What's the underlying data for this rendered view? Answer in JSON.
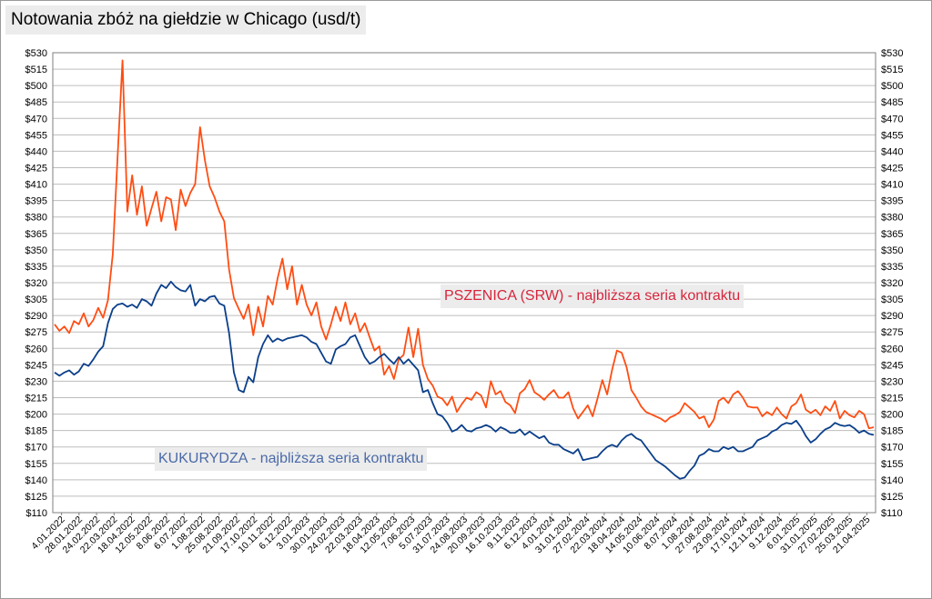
{
  "title": "Notowania zbóż na giełdzie w Chicago (usd/t)",
  "colors": {
    "wheat": "#ff4d12",
    "corn": "#0b3f8a",
    "grid": "#bdbdbd",
    "frame": "#7f7f7f"
  },
  "chart_data": {
    "type": "line",
    "title": "Notowania zbóż na giełdzie w Chicago (usd/t)",
    "xlabel": "",
    "ylabel": "",
    "ylim": [
      110,
      530
    ],
    "ytick_step": 15,
    "yticks_both_sides": true,
    "grid": "horizontal",
    "x_start": "4.01.2022",
    "x_end": "16.05.2025",
    "x_tick_labels": [
      "4.01.2022",
      "28.01.2022",
      "24.02.2022",
      "22.03.2022",
      "18.04.2022",
      "12.05.2022",
      "8.06.2022",
      "6.07.2022",
      "1.08.2022",
      "25.08.2022",
      "21.09.2022",
      "17.10.2022",
      "10.11.2022",
      "6.12.2022",
      "3.01.2023",
      "30.01.2023",
      "24.02.2023",
      "22.03.2023",
      "18.04.2023",
      "12.05.2023",
      "7.06.2023",
      "5.07.2023",
      "31.07.2023",
      "24.08.2023",
      "20.09.2023",
      "16.10.2023",
      "9.11.2023",
      "6.12.2023",
      "4.01.2024",
      "31.01.2024",
      "27.02.2024",
      "22.03.2024",
      "18.04.2024",
      "14.05.2024",
      "10.06.2024",
      "8.07.2024",
      "1.08.2024",
      "27.08.2024",
      "23.09.2024",
      "17.10.2024",
      "12.11.2024",
      "9.12.2024",
      "6.01.2025",
      "31.01.2025",
      "27.02.2025",
      "25.03.2025",
      "21.04.2025"
    ],
    "series": [
      {
        "name": "PSZENICA (SRW) - najbliższa seria kontraktu",
        "label": "PSZENICA (SRW) - najbliższa seria kontraktu",
        "color": "#ff4d12",
        "values": [
          282,
          276,
          280,
          274,
          285,
          282,
          292,
          280,
          286,
          297,
          288,
          304,
          346,
          435,
          523,
          385,
          418,
          382,
          408,
          372,
          388,
          403,
          376,
          398,
          396,
          368,
          405,
          390,
          402,
          410,
          462,
          432,
          408,
          398,
          385,
          376,
          332,
          306,
          296,
          287,
          300,
          272,
          298,
          280,
          308,
          300,
          324,
          342,
          314,
          335,
          300,
          318,
          300,
          290,
          302,
          280,
          268,
          282,
          298,
          285,
          302,
          282,
          292,
          275,
          283,
          270,
          258,
          262,
          236,
          244,
          232,
          250,
          254,
          279,
          252,
          278,
          245,
          232,
          226,
          216,
          214,
          208,
          216,
          202,
          209,
          215,
          213,
          220,
          217,
          206,
          230,
          218,
          221,
          211,
          208,
          201,
          219,
          223,
          231,
          220,
          217,
          213,
          218,
          222,
          215,
          215,
          220,
          205,
          196,
          202,
          208,
          198,
          214,
          231,
          218,
          240,
          258,
          256,
          243,
          222,
          215,
          207,
          202,
          200,
          198,
          196,
          193,
          197,
          199,
          202,
          210,
          206,
          202,
          196,
          198,
          188,
          195,
          212,
          215,
          210,
          218,
          221,
          215,
          207,
          206,
          206,
          198,
          202,
          199,
          206,
          200,
          196,
          207,
          210,
          218,
          204,
          201,
          204,
          199,
          207,
          203,
          212,
          196,
          203,
          199,
          197,
          203,
          200,
          187,
          188
        ]
      },
      {
        "name": "KUKURYDZA - najbliższa seria kontraktu",
        "label": "KUKURYDZA - najbliższa seria kontraktu",
        "color": "#0b3f8a",
        "values": [
          238,
          235,
          238,
          240,
          236,
          239,
          246,
          244,
          250,
          257,
          262,
          283,
          296,
          300,
          301,
          298,
          300,
          297,
          305,
          303,
          299,
          310,
          318,
          315,
          321,
          316,
          313,
          312,
          318,
          299,
          305,
          303,
          307,
          308,
          301,
          299,
          274,
          238,
          222,
          220,
          234,
          229,
          252,
          264,
          272,
          266,
          269,
          267,
          269,
          270,
          271,
          272,
          270,
          266,
          264,
          256,
          248,
          246,
          259,
          262,
          264,
          270,
          272,
          262,
          252,
          246,
          248,
          252,
          255,
          250,
          246,
          252,
          246,
          250,
          245,
          240,
          220,
          222,
          210,
          200,
          198,
          192,
          184,
          186,
          190,
          185,
          184,
          187,
          188,
          190,
          188,
          184,
          188,
          186,
          183,
          183,
          186,
          181,
          184,
          181,
          178,
          180,
          174,
          172,
          172,
          168,
          166,
          164,
          168,
          158,
          159,
          160,
          161,
          166,
          170,
          172,
          170,
          176,
          180,
          182,
          178,
          176,
          170,
          164,
          158,
          155,
          152,
          148,
          144,
          141,
          142,
          148,
          153,
          162,
          164,
          168,
          166,
          166,
          170,
          168,
          170,
          166,
          166,
          168,
          170,
          176,
          178,
          180,
          184,
          186,
          190,
          192,
          191,
          194,
          188,
          180,
          174,
          177,
          182,
          186,
          188,
          192,
          190,
          189,
          190,
          187,
          183,
          185,
          182,
          181
        ]
      }
    ]
  }
}
